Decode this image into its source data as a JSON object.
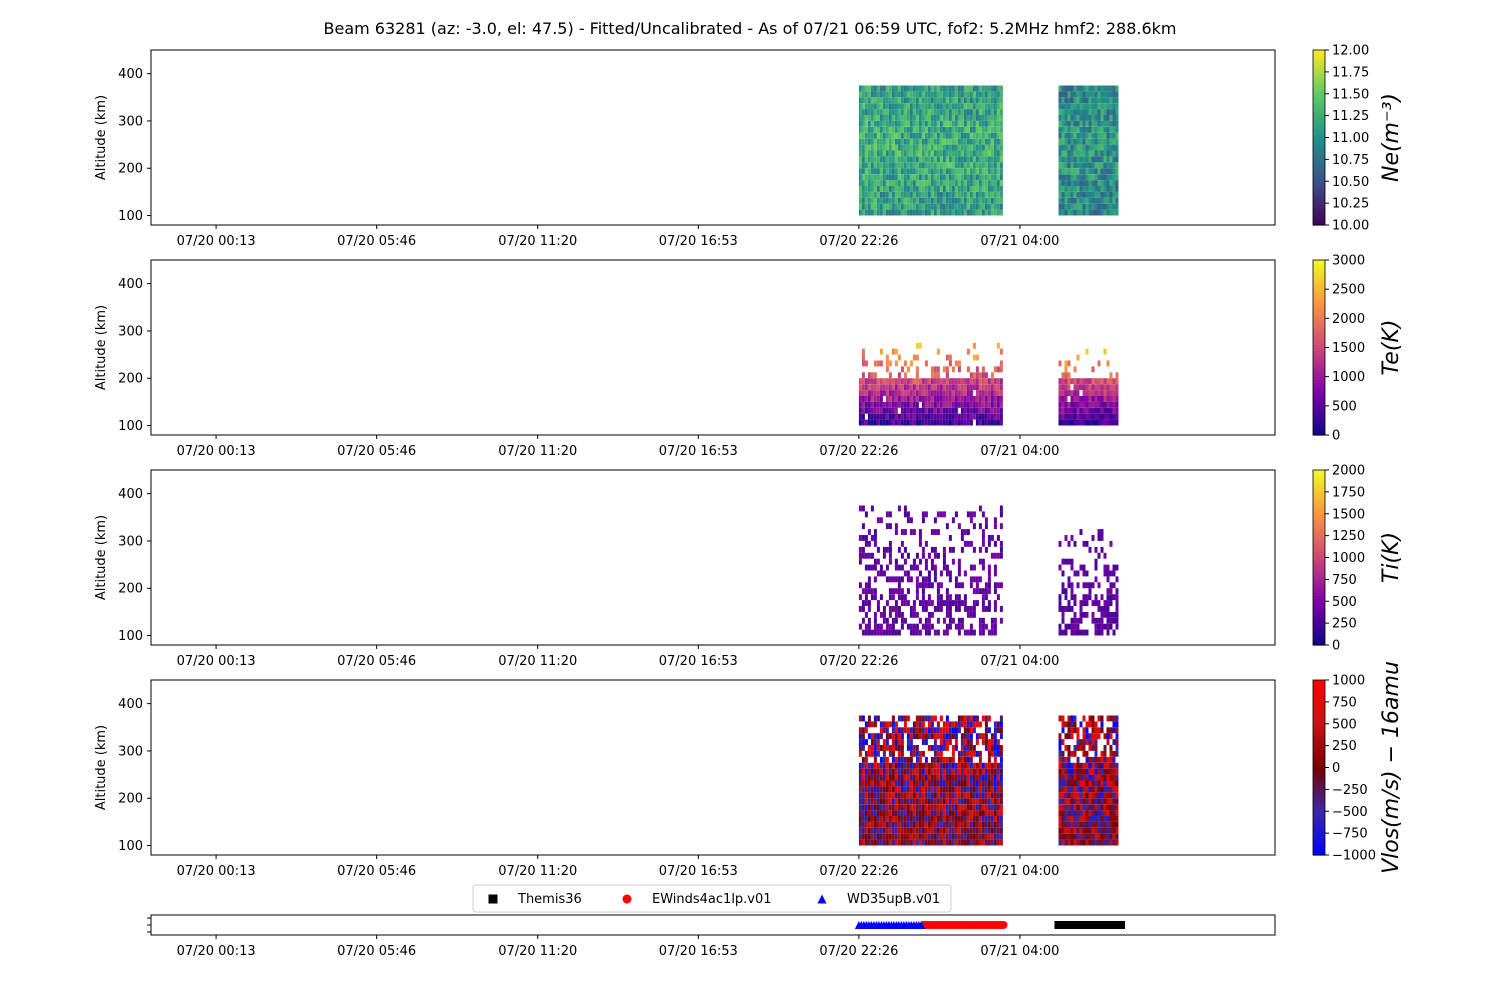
{
  "figure": {
    "title": "Beam 63281 (az: -3.0, el: 47.5) - Fitted/Uncalibrated - As of 07/21 06:59 UTC, fof2: 5.2MHz  hmf2: 288.6km",
    "time_ticks": [
      "07/20 00:13",
      "07/20 05:46",
      "07/20 11:20",
      "07/20 16:53",
      "07/20 22:26",
      "07/21 04:00"
    ]
  },
  "chart_data": [
    {
      "type": "heatmap",
      "id": "ne",
      "ylabel": "Altitude (km)",
      "ylim": [
        80,
        450
      ],
      "yticks": [
        100,
        200,
        300,
        400
      ],
      "x_ticks_hours": [
        0,
        5.55,
        11.117,
        16.667,
        22.217,
        27.783
      ],
      "colorbar": {
        "label": "Ne(m⁻³)",
        "range": [
          10.0,
          12.0
        ],
        "ticks": [
          "10.00",
          "10.25",
          "10.50",
          "10.75",
          "11.00",
          "11.25",
          "11.50",
          "11.75",
          "12.00"
        ],
        "colormap": "viridis"
      },
      "data_blocks": [
        {
          "t_start": "07/20 22:26",
          "t_end": "07/21 03:20",
          "alt_min": 100,
          "alt_max": 375,
          "typical": 11.1
        },
        {
          "t_start": "07/21 05:20",
          "t_end": "07/21 07:20",
          "alt_min": 100,
          "alt_max": 375,
          "typical": 10.9
        }
      ]
    },
    {
      "type": "heatmap",
      "id": "te",
      "ylabel": "Altitude (km)",
      "ylim": [
        80,
        450
      ],
      "yticks": [
        100,
        200,
        300,
        400
      ],
      "colorbar": {
        "label": "Te(K)",
        "range": [
          0,
          3000
        ],
        "ticks": [
          "0",
          "500",
          "1000",
          "1500",
          "2000",
          "2500",
          "3000"
        ],
        "colormap": "plasma"
      },
      "data_blocks": [
        {
          "t_start": "07/20 22:26",
          "t_end": "07/21 03:20",
          "alt_min": 100,
          "alt_max": 280,
          "typical": 1300
        },
        {
          "t_start": "07/21 05:20",
          "t_end": "07/21 07:20",
          "alt_min": 100,
          "alt_max": 265,
          "typical": 1000
        }
      ]
    },
    {
      "type": "heatmap",
      "id": "ti",
      "ylabel": "Altitude (km)",
      "ylim": [
        80,
        450
      ],
      "yticks": [
        100,
        200,
        300,
        400
      ],
      "colorbar": {
        "label": "Ti(K)",
        "range": [
          0,
          2000
        ],
        "ticks": [
          "0",
          "250",
          "500",
          "750",
          "1000",
          "1250",
          "1500",
          "1750",
          "2000"
        ],
        "colormap": "plasma"
      },
      "data_blocks": [
        {
          "t_start": "07/20 22:26",
          "t_end": "07/21 03:20",
          "alt_min": 100,
          "alt_max": 375,
          "typical": 650
        },
        {
          "t_start": "07/21 05:20",
          "t_end": "07/21 07:20",
          "alt_min": 100,
          "alt_max": 330,
          "typical": 650
        }
      ]
    },
    {
      "type": "heatmap",
      "id": "vlos",
      "ylabel": "Altitude (km)",
      "ylim": [
        80,
        450
      ],
      "yticks": [
        100,
        200,
        300,
        400
      ],
      "colorbar": {
        "label": "Vlos(m/s) − 16amu",
        "range": [
          -1000,
          1000
        ],
        "ticks": [
          "−1000",
          "−750",
          "−500",
          "−250",
          "0",
          "250",
          "500",
          "750",
          "1000"
        ],
        "colormap": "bwr_dark"
      },
      "data_blocks": [
        {
          "t_start": "07/20 22:26",
          "t_end": "07/21 03:20",
          "alt_min": 100,
          "alt_max": 375,
          "typical": 0
        },
        {
          "t_start": "07/21 05:20",
          "t_end": "07/21 07:20",
          "alt_min": 100,
          "alt_max": 375,
          "typical": 0
        }
      ]
    },
    {
      "type": "scatter",
      "id": "modes",
      "legend_position": "top-center",
      "series": [
        {
          "name": "Themis36",
          "marker": "square",
          "color": "#000000",
          "t_start": "07/21 05:20",
          "t_end": "07/21 07:30"
        },
        {
          "name": "EWinds4ac1lp.v01",
          "marker": "circle",
          "color": "#ff0000",
          "t_start": "07/21 00:40",
          "t_end": "07/21 03:30"
        },
        {
          "name": "WD35upB.v01",
          "marker": "triangle",
          "color": "#0000ff",
          "t_start": "07/20 22:26",
          "t_end": "07/21 00:40"
        }
      ]
    }
  ]
}
